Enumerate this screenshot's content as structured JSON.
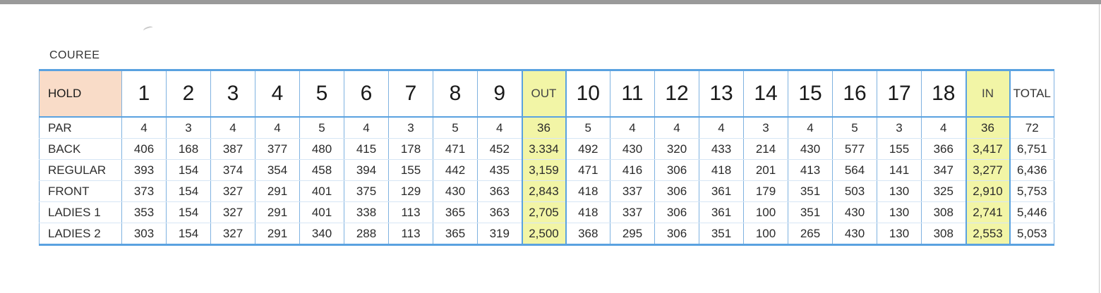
{
  "caption": "COUREE",
  "scorecard": {
    "header": {
      "label": "HOLD",
      "front_holes": [
        "1",
        "2",
        "3",
        "4",
        "5",
        "6",
        "7",
        "8",
        "9"
      ],
      "out_label": "OUT",
      "back_holes": [
        "10",
        "11",
        "12",
        "13",
        "14",
        "15",
        "16",
        "17",
        "18"
      ],
      "in_label": "IN",
      "total_label": "TOTAL"
    },
    "rows": [
      {
        "label": "PAR",
        "front": [
          "4",
          "3",
          "4",
          "4",
          "5",
          "4",
          "3",
          "5",
          "4"
        ],
        "out": "36",
        "back": [
          "5",
          "4",
          "4",
          "4",
          "3",
          "4",
          "5",
          "3",
          "4"
        ],
        "in": "36",
        "total": "72"
      },
      {
        "label": "BACK",
        "front": [
          "406",
          "168",
          "387",
          "377",
          "480",
          "415",
          "178",
          "471",
          "452"
        ],
        "out": "3.334",
        "back": [
          "492",
          "430",
          "320",
          "433",
          "214",
          "430",
          "577",
          "155",
          "366"
        ],
        "in": "3,417",
        "total": "6,751"
      },
      {
        "label": "REGULAR",
        "front": [
          "393",
          "154",
          "374",
          "354",
          "458",
          "394",
          "155",
          "442",
          "435"
        ],
        "out": "3,159",
        "back": [
          "471",
          "416",
          "306",
          "418",
          "201",
          "413",
          "564",
          "141",
          "347"
        ],
        "in": "3,277",
        "total": "6,436"
      },
      {
        "label": "FRONT",
        "front": [
          "373",
          "154",
          "327",
          "291",
          "401",
          "375",
          "129",
          "430",
          "363"
        ],
        "out": "2,843",
        "back": [
          "418",
          "337",
          "306",
          "361",
          "179",
          "351",
          "503",
          "130",
          "325"
        ],
        "in": "2,910",
        "total": "5,753"
      },
      {
        "label": "LADIES 1",
        "front": [
          "353",
          "154",
          "327",
          "291",
          "401",
          "338",
          "113",
          "365",
          "363"
        ],
        "out": "2,705",
        "back": [
          "418",
          "337",
          "306",
          "361",
          "100",
          "351",
          "430",
          "130",
          "308"
        ],
        "in": "2,741",
        "total": "5,446"
      },
      {
        "label": "LADIES 2",
        "front": [
          "303",
          "154",
          "327",
          "291",
          "340",
          "288",
          "113",
          "365",
          "319"
        ],
        "out": "2,500",
        "back": [
          "368",
          "295",
          "306",
          "351",
          "100",
          "265",
          "430",
          "130",
          "308"
        ],
        "in": "2,553",
        "total": "5,053"
      }
    ]
  },
  "colors": {
    "grid_line": "#5aa2e0",
    "hold_label_bg": "#f9dcc8",
    "subtotal_bg": "#f2f5a6"
  }
}
